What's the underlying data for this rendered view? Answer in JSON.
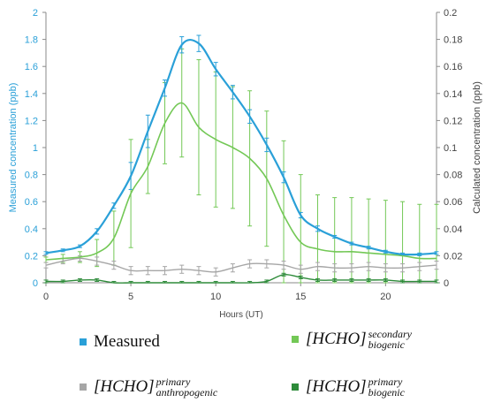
{
  "chart_data": {
    "type": "line",
    "xlabel": "Hours (UT)",
    "ylabel_left": "Measured concentration (ppb)",
    "ylabel_right": "Calculated concentration (ppb)",
    "x_ticks": [
      "0",
      "5",
      "10",
      "15",
      "20"
    ],
    "y_left_ticks": [
      "0",
      "0.2",
      "0.4",
      "0.6",
      "0.8",
      "1",
      "1.2",
      "1.4",
      "1.6",
      "1.8",
      "2"
    ],
    "y_right_ticks": [
      "0",
      "0.02",
      "0.04",
      "0.06",
      "0.08",
      "0.1",
      "0.12",
      "0.14",
      "0.16",
      "0.18",
      "0.2"
    ],
    "xlim": [
      0,
      23
    ],
    "ylim_left": [
      0,
      2
    ],
    "ylim_right": [
      0,
      0.2
    ],
    "grid": false,
    "legend_placement": "bottom",
    "series": [
      {
        "key": "measured",
        "name": "Measured",
        "axis": "left",
        "color": "#2aa0d8",
        "x": [
          0,
          1,
          2,
          3,
          4,
          5,
          6,
          7,
          8,
          9,
          10,
          11,
          12,
          13,
          14,
          15,
          16,
          17,
          18,
          19,
          20,
          21,
          22,
          23
        ],
        "y": [
          0.22,
          0.24,
          0.27,
          0.38,
          0.57,
          0.79,
          1.12,
          1.44,
          1.76,
          1.77,
          1.58,
          1.41,
          1.23,
          1.02,
          0.78,
          0.5,
          0.4,
          0.34,
          0.29,
          0.26,
          0.23,
          0.21,
          0.21,
          0.22
        ],
        "err": [
          0.01,
          0.01,
          0.01,
          0.02,
          0.02,
          0.1,
          0.12,
          0.06,
          0.06,
          0.06,
          0.05,
          0.05,
          0.05,
          0.05,
          0.04,
          0.02,
          0.02,
          0.01,
          0.01,
          0.01,
          0.01,
          0.01,
          0.01,
          0.01
        ]
      },
      {
        "key": "secondary",
        "name": "[HCHO] secondary biogenic",
        "axis": "right",
        "color": "#73c856",
        "x": [
          0,
          1,
          2,
          3,
          4,
          5,
          6,
          7,
          8,
          9,
          10,
          11,
          12,
          13,
          14,
          15,
          16,
          17,
          18,
          19,
          20,
          21,
          22,
          23
        ],
        "y": [
          0.017,
          0.018,
          0.019,
          0.022,
          0.033,
          0.066,
          0.086,
          0.118,
          0.133,
          0.115,
          0.106,
          0.1,
          0.092,
          0.077,
          0.05,
          0.03,
          0.025,
          0.023,
          0.023,
          0.022,
          0.021,
          0.02,
          0.018,
          0.018
        ],
        "err": [
          0.002,
          0.003,
          0.004,
          0.01,
          0.02,
          0.04,
          0.02,
          0.03,
          0.04,
          0.05,
          0.05,
          0.045,
          0.05,
          0.05,
          0.055,
          0.05,
          0.04,
          0.04,
          0.04,
          0.04,
          0.04,
          0.04,
          0.04,
          0.04
        ]
      },
      {
        "key": "anthropogenic",
        "name": "[HCHO] primary anthropogenic",
        "axis": "right",
        "color": "#a6a6a6",
        "x": [
          0,
          1,
          2,
          3,
          4,
          5,
          6,
          7,
          8,
          9,
          10,
          11,
          12,
          13,
          14,
          15,
          16,
          17,
          18,
          19,
          20,
          21,
          22,
          23
        ],
        "y": [
          0.013,
          0.016,
          0.018,
          0.016,
          0.013,
          0.009,
          0.009,
          0.009,
          0.01,
          0.009,
          0.008,
          0.011,
          0.014,
          0.014,
          0.013,
          0.01,
          0.012,
          0.011,
          0.011,
          0.012,
          0.011,
          0.011,
          0.012,
          0.013
        ],
        "err": [
          0.002,
          0.002,
          0.002,
          0.003,
          0.003,
          0.003,
          0.003,
          0.003,
          0.003,
          0.003,
          0.003,
          0.003,
          0.003,
          0.003,
          0.003,
          0.003,
          0.003,
          0.003,
          0.003,
          0.003,
          0.003,
          0.003,
          0.003,
          0.003
        ]
      },
      {
        "key": "primary_biogenic",
        "name": "[HCHO] primary biogenic",
        "axis": "right",
        "color": "#2e8b3a",
        "x": [
          0,
          1,
          2,
          3,
          4,
          5,
          6,
          7,
          8,
          9,
          10,
          11,
          12,
          13,
          14,
          15,
          16,
          17,
          18,
          19,
          20,
          21,
          22,
          23
        ],
        "y": [
          0.001,
          0.001,
          0.002,
          0.002,
          0.0,
          0.0,
          0.0,
          0.0,
          0.0,
          0.0,
          0.0,
          0.0,
          0.0,
          0.001,
          0.006,
          0.004,
          0.002,
          0.002,
          0.002,
          0.002,
          0.002,
          0.001,
          0.001,
          0.001
        ],
        "err": [
          0.001,
          0.001,
          0.001,
          0.001,
          0.001,
          0.001,
          0.001,
          0.001,
          0.001,
          0.001,
          0.001,
          0.001,
          0.001,
          0.001,
          0.001,
          0.001,
          0.001,
          0.001,
          0.001,
          0.001,
          0.001,
          0.001,
          0.001,
          0.001
        ]
      }
    ]
  },
  "legend": {
    "measured": {
      "label": "Measured",
      "color": "#2aa0d8"
    },
    "secondary": {
      "base": "[HCHO]",
      "sup": "secondary",
      "sub": "biogenic",
      "color": "#73c856"
    },
    "anthropogenic": {
      "base": "[HCHO]",
      "sup": "primary",
      "sub": "anthropogenic",
      "color": "#a6a6a6"
    },
    "primary_biogenic": {
      "base": "[HCHO]",
      "sup": "primary",
      "sub": "biogenic",
      "color": "#2e8b3a"
    }
  }
}
